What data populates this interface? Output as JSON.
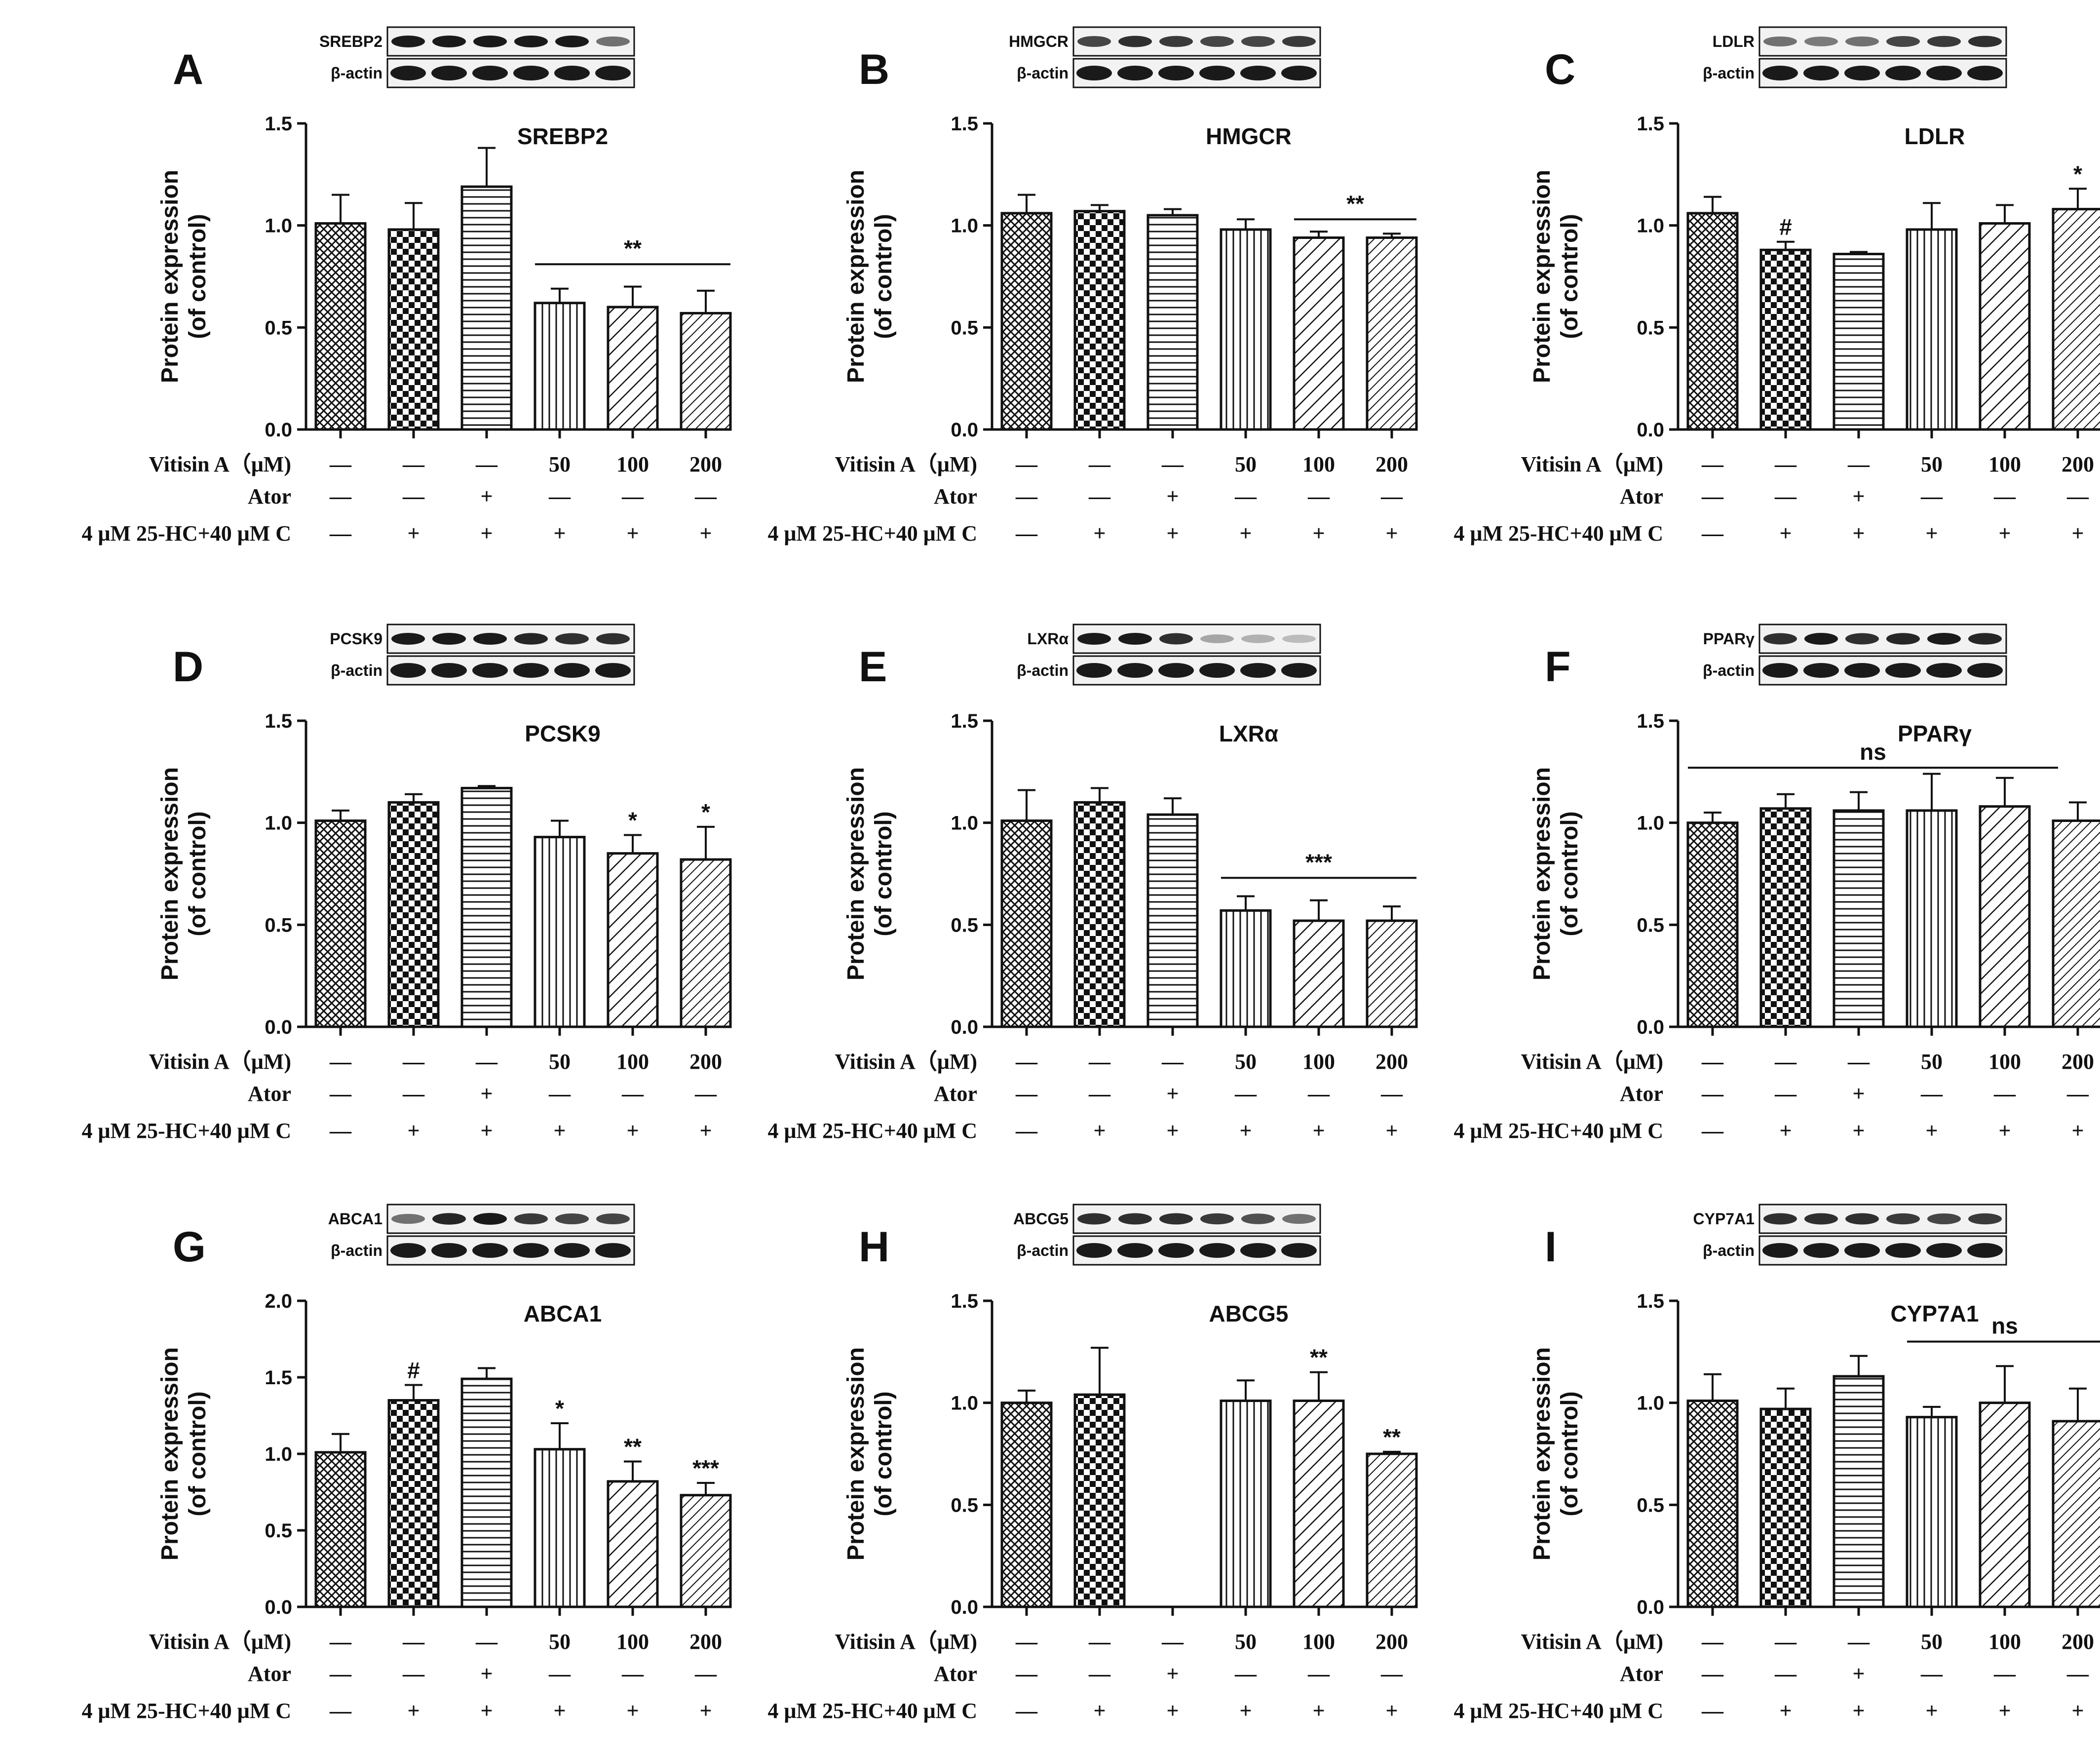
{
  "figure": {
    "row_labels": [
      "Vitisin A（μM)",
      "Ator",
      "4 μM 25-HC+40 μM C"
    ],
    "columns": [
      {
        "vitisin": "—",
        "ator": "—",
        "hc": "—"
      },
      {
        "vitisin": "—",
        "ator": "—",
        "hc": "+"
      },
      {
        "vitisin": "—",
        "ator": "+",
        "hc": "+"
      },
      {
        "vitisin": "50",
        "ator": "—",
        "hc": "+"
      },
      {
        "vitisin": "100",
        "ator": "—",
        "hc": "+"
      },
      {
        "vitisin": "200",
        "ator": "—",
        "hc": "+"
      }
    ],
    "ylabel_line1": "Protein expression",
    "ylabel_line2": "(of control)",
    "loading_control": "β-actin"
  },
  "colors": {
    "ink": "#111111",
    "blot_band": "#1a1a1a",
    "blot_bg": "#f2f2f2"
  },
  "chart_data": [
    {
      "panel": "A",
      "type": "bar",
      "title": "SREBP2",
      "blot": "SREBP2",
      "ylim": [
        0,
        1.5
      ],
      "yticks": [
        "0.0",
        "0.5",
        "1.0",
        "1.5"
      ],
      "values": [
        1.01,
        0.98,
        1.19,
        0.62,
        0.6,
        0.57
      ],
      "errors": [
        0.14,
        0.13,
        0.19,
        0.07,
        0.1,
        0.11
      ],
      "marks": [
        "",
        "",
        "",
        "",
        "",
        ""
      ],
      "bracket": {
        "from": 3,
        "to": 5,
        "y": 0.81,
        "label": "**"
      },
      "band_intensity": [
        1,
        1,
        1,
        1,
        1,
        0.6
      ]
    },
    {
      "panel": "B",
      "type": "bar",
      "title": "HMGCR",
      "blot": "HMGCR",
      "ylim": [
        0,
        1.5
      ],
      "yticks": [
        "0.0",
        "0.5",
        "1.0",
        "1.5"
      ],
      "values": [
        1.06,
        1.07,
        1.05,
        0.98,
        0.94,
        0.94
      ],
      "errors": [
        0.09,
        0.03,
        0.03,
        0.05,
        0.03,
        0.02
      ],
      "marks": [
        "",
        "",
        "",
        "",
        "",
        ""
      ],
      "bracket": {
        "from": 4,
        "to": 5,
        "y": 1.03,
        "label": "**"
      },
      "band_intensity": [
        0.8,
        0.9,
        0.85,
        0.8,
        0.8,
        0.85
      ]
    },
    {
      "panel": "C",
      "type": "bar",
      "title": "LDLR",
      "blot": "LDLR",
      "ylim": [
        0,
        1.5
      ],
      "yticks": [
        "0.0",
        "0.5",
        "1.0",
        "1.5"
      ],
      "values": [
        1.06,
        0.88,
        0.86,
        0.98,
        1.01,
        1.08
      ],
      "errors": [
        0.08,
        0.04,
        0.01,
        0.13,
        0.09,
        0.1
      ],
      "marks": [
        "",
        "#",
        "",
        "",
        "",
        "*"
      ],
      "bracket": null,
      "band_intensity": [
        0.6,
        0.55,
        0.6,
        0.8,
        0.85,
        0.9
      ]
    },
    {
      "panel": "D",
      "type": "bar",
      "title": "PCSK9",
      "blot": "PCSK9",
      "ylim": [
        0,
        1.5
      ],
      "yticks": [
        "0.0",
        "0.5",
        "1.0",
        "1.5"
      ],
      "values": [
        1.01,
        1.1,
        1.17,
        0.93,
        0.85,
        0.82
      ],
      "errors": [
        0.05,
        0.04,
        0.01,
        0.08,
        0.09,
        0.16
      ],
      "marks": [
        "",
        "",
        "",
        "",
        "*",
        "*"
      ],
      "bracket": null,
      "band_intensity": [
        1,
        1,
        1,
        0.95,
        0.9,
        0.9
      ]
    },
    {
      "panel": "E",
      "type": "bar",
      "title": "LXRα",
      "blot": "LXRα",
      "ylim": [
        0,
        1.5
      ],
      "yticks": [
        "0.0",
        "0.5",
        "1.0",
        "1.5"
      ],
      "values": [
        1.01,
        1.1,
        1.04,
        0.57,
        0.52,
        0.52
      ],
      "errors": [
        0.15,
        0.07,
        0.08,
        0.07,
        0.1,
        0.07
      ],
      "marks": [
        "",
        "",
        "",
        "",
        "",
        ""
      ],
      "bracket": {
        "from": 3,
        "to": 5,
        "y": 0.73,
        "label": "***"
      },
      "band_intensity": [
        1,
        1,
        0.9,
        0.35,
        0.3,
        0.25
      ]
    },
    {
      "panel": "F",
      "type": "bar",
      "title": "PPARγ",
      "blot": "PPARγ",
      "ylim": [
        0,
        1.5
      ],
      "yticks": [
        "0.0",
        "0.5",
        "1.0",
        "1.5"
      ],
      "values": [
        1.0,
        1.07,
        1.06,
        1.06,
        1.08,
        1.01
      ],
      "errors": [
        0.05,
        0.07,
        0.09,
        0.18,
        0.14,
        0.09
      ],
      "marks": [
        "",
        "",
        "",
        "",
        "",
        ""
      ],
      "bracket": {
        "from": 0,
        "to": 5,
        "y": 1.27,
        "label": "ns",
        "full": true
      },
      "band_intensity": [
        0.9,
        1,
        0.9,
        0.95,
        1,
        0.95
      ]
    },
    {
      "panel": "G",
      "type": "bar",
      "title": "ABCA1",
      "blot": "ABCA1",
      "ylim": [
        0,
        2.0
      ],
      "yticks": [
        "0.0",
        "0.5",
        "1.0",
        "1.5",
        "2.0"
      ],
      "values": [
        1.01,
        1.35,
        1.49,
        1.03,
        0.82,
        0.73
      ],
      "errors": [
        0.12,
        0.1,
        0.07,
        0.17,
        0.13,
        0.08
      ],
      "marks": [
        "",
        "#",
        "",
        "*",
        "**",
        "***"
      ],
      "bracket": null,
      "band_intensity": [
        0.6,
        0.95,
        1,
        0.85,
        0.8,
        0.8
      ]
    },
    {
      "panel": "H",
      "type": "bar",
      "title": "ABCG5",
      "blot": "ABCG5",
      "ylim": [
        0,
        1.5
      ],
      "yticks": [
        "0.0",
        "0.5",
        "1.0",
        "1.5"
      ],
      "values": [
        1.0,
        1.04,
        1.01,
        1.01,
        0.75
      ],
      "errors": [
        0.06,
        0.23,
        0.1,
        0.14,
        0.01
      ],
      "marks": [
        "",
        "",
        "",
        "**",
        "**"
      ],
      "bracket": null,
      "positions": [
        0,
        1,
        3,
        4,
        5
      ],
      "band_intensity": [
        0.9,
        0.9,
        0.9,
        0.85,
        0.75,
        0.6
      ]
    },
    {
      "panel": "I",
      "type": "bar",
      "title": "CYP7A1",
      "blot": "CYP7A1",
      "ylim": [
        0,
        1.5
      ],
      "yticks": [
        "0.0",
        "0.5",
        "1.0",
        "1.5"
      ],
      "values": [
        1.01,
        0.97,
        1.13,
        0.93,
        1.0,
        0.91
      ],
      "errors": [
        0.13,
        0.1,
        0.1,
        0.05,
        0.18,
        0.16
      ],
      "marks": [
        "",
        "",
        "",
        "",
        "",
        ""
      ],
      "bracket": {
        "from": 3,
        "to": 5,
        "y": 1.3,
        "label": "ns"
      },
      "band_intensity": [
        0.9,
        0.9,
        0.9,
        0.85,
        0.8,
        0.85
      ]
    }
  ]
}
